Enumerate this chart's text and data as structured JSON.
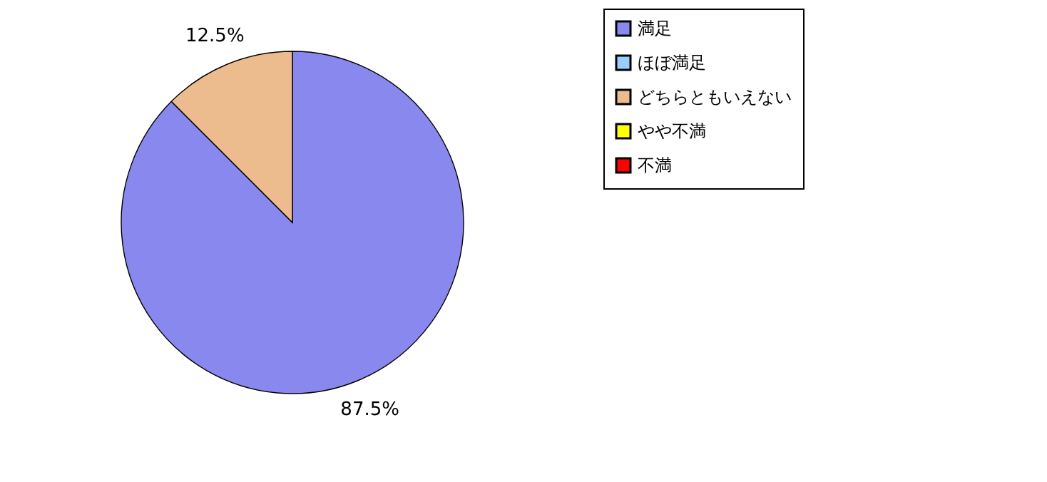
{
  "chart_data": {
    "type": "pie",
    "categories": [
      "満足",
      "ほぼ満足",
      "どちらともいえない",
      "やや不満",
      "不満"
    ],
    "values": [
      87.5,
      0,
      12.5,
      0,
      0
    ],
    "colors": [
      "#8888ee",
      "#99ccff",
      "#ecbc8e",
      "#ffff00",
      "#ff0000"
    ],
    "value_labels": [
      "87.5%",
      null,
      "12.5%",
      null,
      null
    ],
    "legend": "right"
  }
}
